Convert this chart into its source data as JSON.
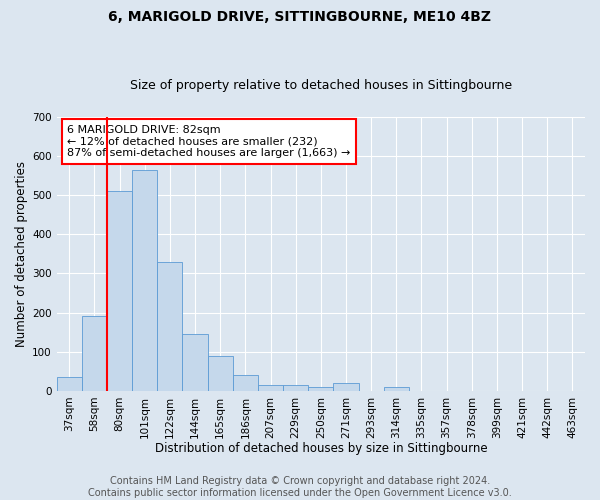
{
  "title": "6, MARIGOLD DRIVE, SITTINGBOURNE, ME10 4BZ",
  "subtitle": "Size of property relative to detached houses in Sittingbourne",
  "xlabel": "Distribution of detached houses by size in Sittingbourne",
  "ylabel": "Number of detached properties",
  "footer_line1": "Contains HM Land Registry data © Crown copyright and database right 2024.",
  "footer_line2": "Contains public sector information licensed under the Open Government Licence v3.0.",
  "categories": [
    "37sqm",
    "58sqm",
    "80sqm",
    "101sqm",
    "122sqm",
    "144sqm",
    "165sqm",
    "186sqm",
    "207sqm",
    "229sqm",
    "250sqm",
    "271sqm",
    "293sqm",
    "314sqm",
    "335sqm",
    "357sqm",
    "378sqm",
    "399sqm",
    "421sqm",
    "442sqm",
    "463sqm"
  ],
  "values": [
    35,
    190,
    510,
    565,
    330,
    145,
    90,
    40,
    15,
    15,
    10,
    20,
    0,
    10,
    0,
    0,
    0,
    0,
    0,
    0,
    0
  ],
  "ylim": [
    0,
    700
  ],
  "yticks": [
    0,
    100,
    200,
    300,
    400,
    500,
    600,
    700
  ],
  "bar_color": "#c5d8eb",
  "bar_edge_color": "#5b9bd5",
  "bg_color": "#dce6f0",
  "plot_bg_color": "#dce6f0",
  "annotation_text": "6 MARIGOLD DRIVE: 82sqm\n← 12% of detached houses are smaller (232)\n87% of semi-detached houses are larger (1,663) →",
  "annotation_box_color": "white",
  "annotation_box_edge": "red",
  "vline_color": "red",
  "grid_color": "white",
  "title_fontsize": 10,
  "subtitle_fontsize": 9,
  "xlabel_fontsize": 8.5,
  "ylabel_fontsize": 8.5,
  "tick_fontsize": 7.5,
  "annotation_fontsize": 8,
  "footer_fontsize": 7
}
